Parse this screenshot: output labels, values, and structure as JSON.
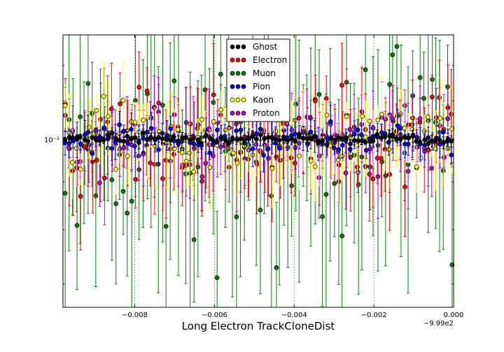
{
  "chart_data": {
    "type": "scatter",
    "title": "",
    "xlabel": "Long Electron TrackCloneDist",
    "ylabel": "",
    "x_offset_label": "−9.99e2",
    "xlim": [
      -0.0098,
      0.0
    ],
    "ylim_log10": [
      -2.18,
      -1.888
    ],
    "y_scale": "log",
    "x_ticks": [
      -0.008,
      -0.006,
      -0.004,
      -0.002,
      0.0
    ],
    "x_tick_labels": [
      "−0.008",
      "−0.006",
      "−0.004",
      "−0.002",
      "0.000"
    ],
    "y_ticks": [
      0.01
    ],
    "y_tick_labels": [
      "10⁻²"
    ],
    "grid": "vertical dotted",
    "legend_position": "top-center",
    "series": [
      {
        "name": "Ghost",
        "color": "#000000"
      },
      {
        "name": "Electron",
        "color": "#ff0000"
      },
      {
        "name": "Muon",
        "color": "#008000"
      },
      {
        "name": "Pion",
        "color": "#0000ff"
      },
      {
        "name": "Kaon",
        "color": "#ffff00"
      },
      {
        "name": "Proton",
        "color": "#bf00bf"
      }
    ],
    "samples_per_series": 100,
    "approx_center_value": 0.01,
    "approx_relative_error": {
      "Ghost": 0.01,
      "Electron": 0.09,
      "Muon": 0.2,
      "Pion": 0.03,
      "Kaon": 0.07,
      "Proton": 0.07
    }
  }
}
